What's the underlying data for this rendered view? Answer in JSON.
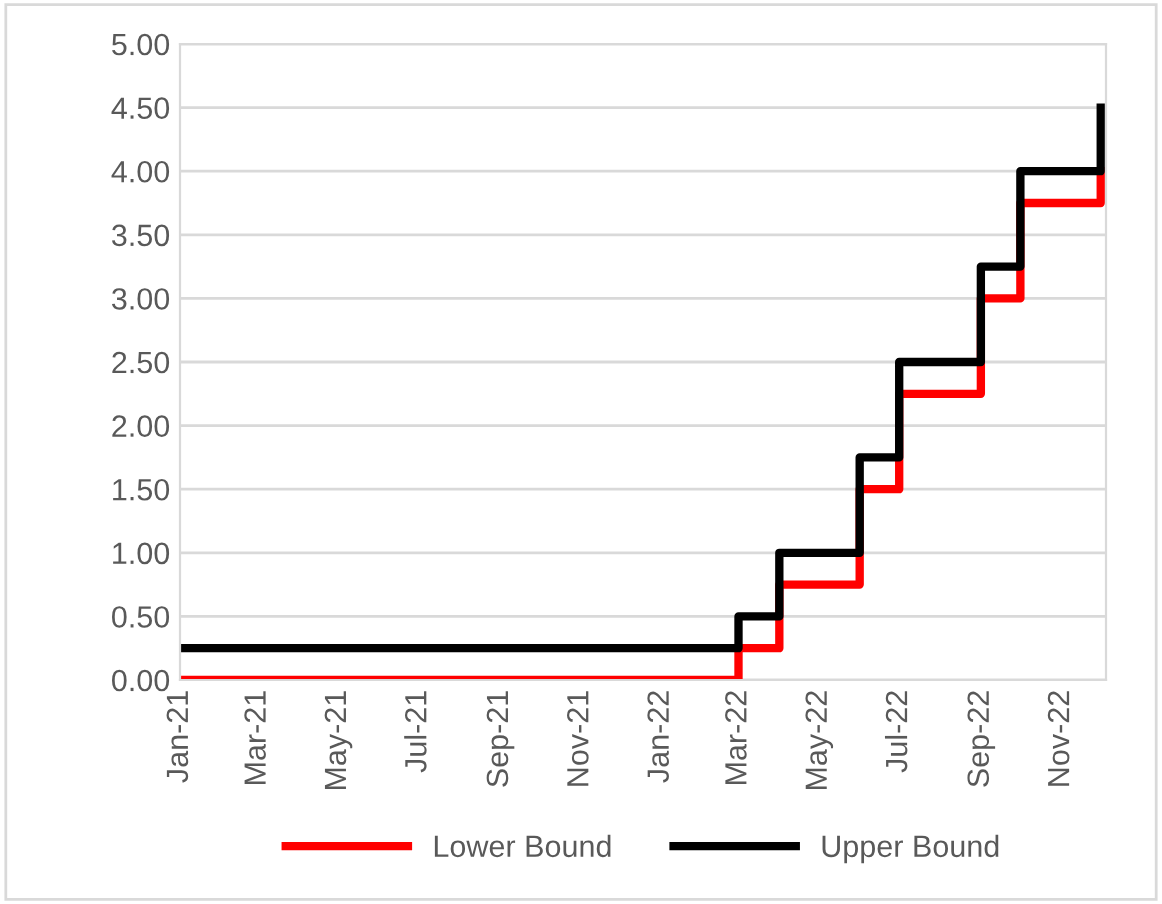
{
  "chart_data": {
    "type": "step",
    "x": [
      "2021-01-01",
      "2022-03-01",
      "2022-04-01",
      "2022-06-01",
      "2022-07-01",
      "2022-09-01",
      "2022-10-01",
      "2022-12-01"
    ],
    "series": [
      {
        "name": "Lower Bound",
        "color": "#ff0000",
        "values": [
          0,
          0.25,
          0.75,
          1.5,
          2.25,
          3.0,
          3.75,
          4.0
        ]
      },
      {
        "name": "Upper Bound",
        "color": "#000000",
        "values": [
          0.25,
          0.5,
          1.0,
          1.75,
          2.5,
          3.25,
          4.0,
          4.5
        ]
      }
    ],
    "xlim": [
      "2021-01-01",
      "2022-12-05"
    ],
    "xticks": [
      {
        "value": "2021-01-01",
        "label": "Jan-21"
      },
      {
        "value": "2021-03-01",
        "label": "Mar-21"
      },
      {
        "value": "2021-05-01",
        "label": "May-21"
      },
      {
        "value": "2021-07-01",
        "label": "Jul-21"
      },
      {
        "value": "2021-09-01",
        "label": "Sep-21"
      },
      {
        "value": "2021-11-01",
        "label": "Nov-21"
      },
      {
        "value": "2022-01-01",
        "label": "Jan-22"
      },
      {
        "value": "2022-03-01",
        "label": "Mar-22"
      },
      {
        "value": "2022-05-01",
        "label": "May-22"
      },
      {
        "value": "2022-07-01",
        "label": "Jul-22"
      },
      {
        "value": "2022-09-01",
        "label": "Sep-22"
      },
      {
        "value": "2022-11-01",
        "label": "Nov-22"
      }
    ],
    "ylim": [
      0,
      5
    ],
    "yticks": [
      {
        "value": 0,
        "label": "0.00"
      },
      {
        "value": 0.5,
        "label": "0.50"
      },
      {
        "value": 1,
        "label": "1.00"
      },
      {
        "value": 1.5,
        "label": "1.50"
      },
      {
        "value": 2,
        "label": "2.00"
      },
      {
        "value": 2.5,
        "label": "2.50"
      },
      {
        "value": 3,
        "label": "3.00"
      },
      {
        "value": 3.5,
        "label": "3.50"
      },
      {
        "value": 4,
        "label": "4.00"
      },
      {
        "value": 4.5,
        "label": "4.50"
      },
      {
        "value": 5,
        "label": "5.00"
      }
    ],
    "grid": "y",
    "legend": "bottom",
    "marker": "none",
    "line_style": "solid"
  }
}
